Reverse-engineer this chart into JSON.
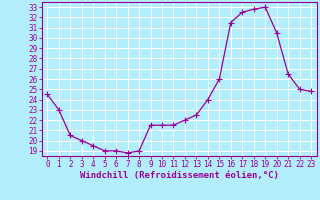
{
  "x": [
    0,
    1,
    2,
    3,
    4,
    5,
    6,
    7,
    8,
    9,
    10,
    11,
    12,
    13,
    14,
    15,
    16,
    17,
    18,
    19,
    20,
    21,
    22,
    23
  ],
  "y": [
    24.5,
    23.0,
    20.5,
    20.0,
    19.5,
    19.0,
    19.0,
    18.8,
    19.0,
    21.5,
    21.5,
    21.5,
    22.0,
    22.5,
    24.0,
    26.0,
    31.5,
    32.5,
    32.8,
    33.0,
    30.5,
    26.5,
    25.0,
    24.8
  ],
  "line_color": "#990099",
  "marker": "+",
  "marker_size": 4,
  "bg_color": "#b3eeff",
  "plot_bg_color": "#b3eeff",
  "grid_color": "#ffffff",
  "xlabel": "Windchill (Refroidissement éolien,°C)",
  "ylabel_ticks": [
    19,
    20,
    21,
    22,
    23,
    24,
    25,
    26,
    27,
    28,
    29,
    30,
    31,
    32,
    33
  ],
  "xlim": [
    -0.5,
    23.5
  ],
  "ylim": [
    18.5,
    33.5
  ],
  "axis_color": "#990099",
  "tick_label_color": "#990099",
  "xlabel_color": "#990099",
  "tick_fontsize": 5.5,
  "xlabel_fontsize": 6.5
}
